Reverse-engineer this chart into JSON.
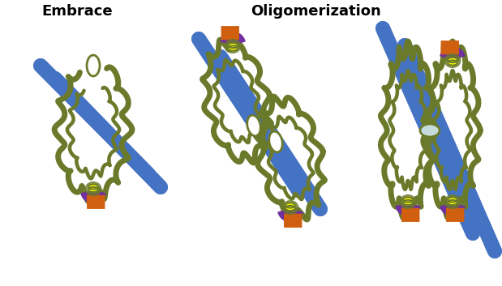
{
  "title_left": "Embrace",
  "title_right": "Oligomerization",
  "title_fontsize": 13,
  "title_fontweight": "bold",
  "olive": "#6b7a2a",
  "blue": "#4472C4",
  "purple": "#7030A0",
  "orange": "#D06010",
  "yellow": "#FFFF00",
  "bg": "#FFFFFF",
  "lw_chromatid": 13,
  "lw_coil": 5.0
}
